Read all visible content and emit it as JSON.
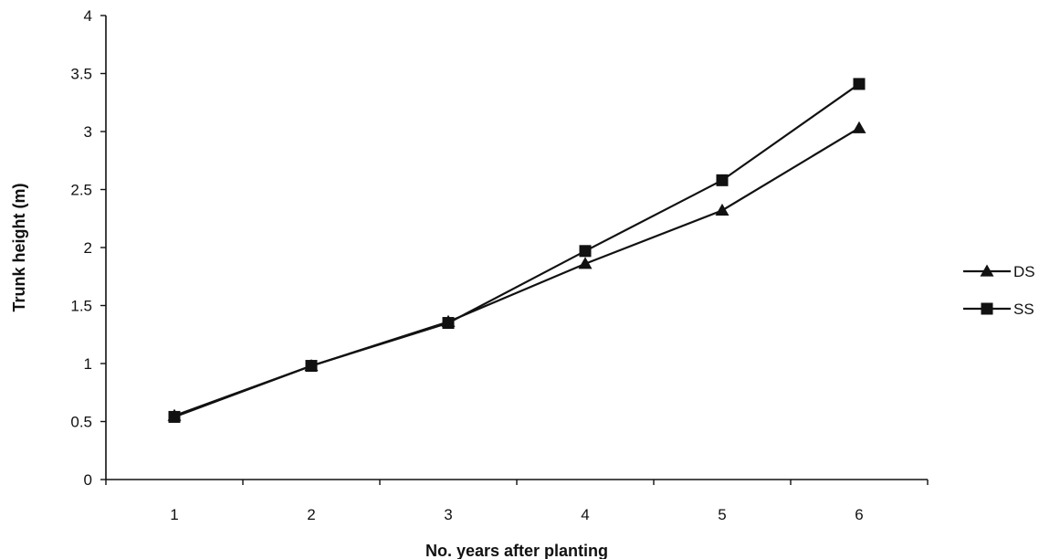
{
  "chart_data": {
    "type": "line",
    "x": [
      1,
      2,
      3,
      4,
      5,
      6
    ],
    "series": [
      {
        "name": "DS",
        "marker": "triangle",
        "values": [
          0.55,
          0.98,
          1.36,
          1.86,
          2.32,
          3.03
        ]
      },
      {
        "name": "SS",
        "marker": "square",
        "values": [
          0.54,
          0.98,
          1.35,
          1.97,
          2.58,
          3.41
        ]
      }
    ],
    "xlabel": "No. years after planting",
    "ylabel": "Trunk height (m)",
    "ylim": [
      0,
      4
    ],
    "yticks": [
      "0",
      "0.5",
      "1",
      "1.5",
      "2",
      "2.5",
      "3",
      "3.5",
      "4"
    ],
    "xticks": [
      "1",
      "2",
      "3",
      "4",
      "5",
      "6"
    ],
    "grid": false,
    "legend_position": "right"
  }
}
